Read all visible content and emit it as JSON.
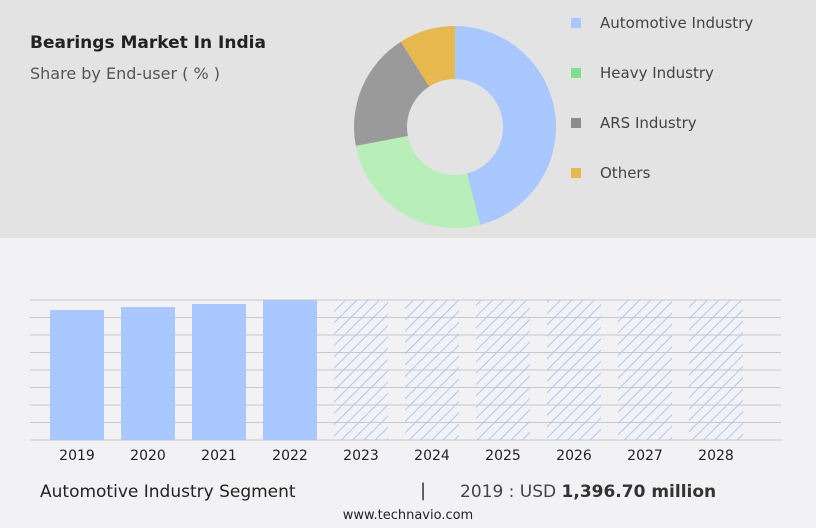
{
  "header": {
    "title": "Bearings Market In India",
    "subtitle": "Share by End-user ( % )"
  },
  "donut": {
    "type": "pie",
    "slices": [
      {
        "name": "Automotive Industry",
        "value": 46,
        "color": "#a8c8ff"
      },
      {
        "name": "Heavy Industry",
        "value": 26,
        "color": "#b8efb8"
      },
      {
        "name": "ARS Industry",
        "value": 19,
        "color": "#9a9a9a"
      },
      {
        "name": "Others",
        "value": 9,
        "color": "#e6b84e"
      }
    ]
  },
  "legend_colors": [
    "#a8c8ff",
    "#7ee08e",
    "#8c8c8c",
    "#e6b84e"
  ],
  "chart_data": {
    "type": "bar",
    "categories": [
      "2019",
      "2020",
      "2021",
      "2022",
      "2023",
      "2024",
      "2025",
      "2026",
      "2027",
      "2028"
    ],
    "values": [
      1396.7,
      1429,
      1461,
      1504,
      null,
      null,
      null,
      null,
      null,
      null
    ],
    "forecast": [
      "2023",
      "2024",
      "2025",
      "2026",
      "2027",
      "2028"
    ],
    "ylim": [
      0,
      1504
    ],
    "grid": true,
    "color": "#a8c8ff"
  },
  "footer": {
    "segment": "Automotive Industry Segment",
    "separator": "|",
    "year_label": "2019 : USD ",
    "value": "1,396.70 million",
    "site": "www.technavio.com"
  }
}
